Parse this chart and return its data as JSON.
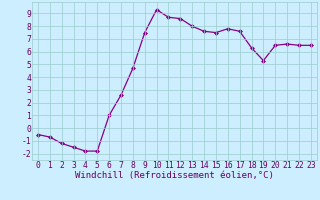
{
  "x": [
    0,
    1,
    2,
    3,
    4,
    5,
    6,
    7,
    8,
    9,
    10,
    11,
    12,
    13,
    14,
    15,
    16,
    17,
    18,
    19,
    20,
    21,
    22,
    23
  ],
  "y": [
    -0.5,
    -0.7,
    -1.2,
    -1.5,
    -1.8,
    -1.8,
    1.0,
    2.6,
    4.7,
    7.5,
    9.3,
    8.7,
    8.6,
    8.0,
    7.6,
    7.5,
    7.8,
    7.6,
    6.3,
    5.3,
    6.5,
    6.6,
    6.5,
    6.5
  ],
  "line_color": "#880088",
  "marker": "D",
  "markersize": 2,
  "linewidth": 0.9,
  "bg_color": "#cceeff",
  "grid_color": "#99cccc",
  "xlabel": "Windchill (Refroidissement éolien,°C)",
  "xlabel_fontsize": 6.5,
  "yticks": [
    -2,
    -1,
    0,
    1,
    2,
    3,
    4,
    5,
    6,
    7,
    8,
    9
  ],
  "xticks": [
    0,
    1,
    2,
    3,
    4,
    5,
    6,
    7,
    8,
    9,
    10,
    11,
    12,
    13,
    14,
    15,
    16,
    17,
    18,
    19,
    20,
    21,
    22,
    23
  ],
  "ylim": [
    -2.5,
    9.9
  ],
  "xlim": [
    -0.5,
    23.5
  ],
  "tick_fontsize": 5.8,
  "label_color": "#660066"
}
